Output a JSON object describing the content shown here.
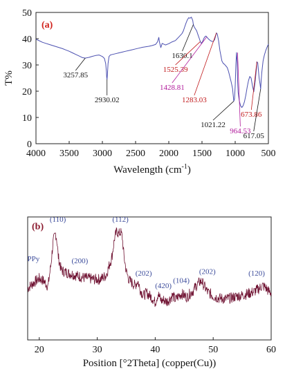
{
  "colors": {
    "ftir_line": "#4a4fb0",
    "xrd_line": "#6e1030",
    "panel_a_label": "#d0201a",
    "panel_b_label": "#8b1a2e",
    "hkl_label": "#3a4a9a",
    "ann_black": "#111111",
    "ann_red": "#c0181a",
    "ann_magenta": "#b0189a"
  },
  "chart_data": [
    {
      "type": "line",
      "panel_label": "(a)",
      "xlabel": "Wavelength (cm",
      "xlabel_sup": "-1",
      "xlabel_close": ")",
      "ylabel": "T%",
      "xlim": [
        4000,
        500
      ],
      "ylim": [
        0,
        50
      ],
      "grid": false,
      "xticks": [
        "4000",
        "3500",
        "3000",
        "2500",
        "2000",
        "1500",
        "1000",
        "500"
      ],
      "yticks": [
        "0",
        "10",
        "20",
        "30",
        "40",
        "50"
      ],
      "series": [
        {
          "x": [
            4000,
            3950,
            3900,
            3850,
            3800,
            3750,
            3700,
            3650,
            3600,
            3550,
            3500,
            3450,
            3400,
            3350,
            3300,
            3257,
            3200,
            3150,
            3100,
            3050,
            3000,
            2970,
            2950,
            2940,
            2935,
            2930,
            2925,
            2915,
            2900,
            2880,
            2850,
            2800,
            2750,
            2700,
            2650,
            2600,
            2550,
            2500,
            2450,
            2400,
            2350,
            2300,
            2250,
            2200,
            2170,
            2150,
            2140,
            2120,
            2100,
            2050,
            2000,
            1950,
            1900,
            1850,
            1800,
            1780,
            1760,
            1740,
            1720,
            1700,
            1680,
            1660,
            1640,
            1630,
            1620,
            1600,
            1580,
            1560,
            1540,
            1525,
            1510,
            1490,
            1470,
            1450,
            1440,
            1429,
            1410,
            1390,
            1370,
            1350,
            1330,
            1310,
            1290,
            1283,
            1270,
            1250,
            1230,
            1200,
            1180,
            1160,
            1140,
            1120,
            1100,
            1080,
            1060,
            1040,
            1030,
            1021,
            1010,
            1000,
            990,
            980,
            970,
            964,
            955,
            940,
            920,
            900,
            880,
            860,
            840,
            820,
            800,
            780,
            760,
            740,
            720,
            700,
            680,
            674,
            660,
            640,
            625,
            617,
            610,
            600,
            580,
            560,
            540,
            520,
            500
          ],
          "y": [
            39.8,
            39.2,
            38.6,
            38.2,
            37.8,
            37.4,
            37.0,
            36.6,
            36.2,
            35.7,
            35.2,
            34.6,
            34.0,
            33.4,
            32.8,
            32.6,
            32.9,
            33.3,
            33.6,
            33.8,
            33.2,
            32.5,
            30.5,
            27.5,
            25.5,
            24.5,
            26.0,
            30.5,
            33.2,
            33.8,
            34.0,
            34.3,
            34.6,
            34.9,
            35.2,
            35.5,
            35.8,
            36.1,
            36.4,
            36.7,
            36.9,
            37.1,
            37.4,
            37.8,
            38.8,
            40.5,
            38.6,
            36.6,
            38.2,
            37.6,
            38.1,
            38.8,
            39.3,
            40.6,
            42.0,
            43.0,
            44.5,
            46.0,
            47.2,
            48.0,
            47.8,
            48.2,
            47.0,
            45.4,
            44.6,
            43.8,
            43.0,
            41.5,
            40.0,
            38.9,
            38.2,
            39.0,
            40.2,
            40.9,
            41.0,
            40.7,
            40.1,
            39.6,
            39.2,
            39.0,
            38.9,
            39.6,
            41.5,
            42.2,
            41.8,
            39.2,
            35.5,
            31.5,
            30.6,
            30.2,
            29.6,
            29.0,
            27.5,
            25.5,
            23.5,
            21.0,
            18.5,
            16.2,
            17.0,
            22.0,
            30.0,
            34.7,
            31.0,
            24.0,
            19.5,
            16.5,
            14.5,
            13.8,
            14.5,
            16.0,
            18.5,
            21.5,
            24.0,
            25.6,
            25.0,
            22.0,
            19.8,
            23.5,
            28.5,
            31.2,
            30.8,
            25.0,
            22.6,
            20.8,
            23.5,
            27.0,
            31.5,
            33.8,
            35.5,
            36.8,
            37.9
          ]
        }
      ],
      "annotations": [
        {
          "text": "3257.85",
          "x": 3257.85,
          "y": 32.6,
          "color": "ann_black"
        },
        {
          "text": "2930.02",
          "x": 2930.02,
          "y": 24.5,
          "color": "ann_black"
        },
        {
          "text": "1630.1",
          "x": 1630.1,
          "y": 45.4,
          "color": "ann_black"
        },
        {
          "text": "1525.39",
          "x": 1525.39,
          "y": 38.9,
          "color": "ann_red"
        },
        {
          "text": "1428.81",
          "x": 1428.81,
          "y": 40.7,
          "color": "ann_magenta"
        },
        {
          "text": "1283.03",
          "x": 1283.03,
          "y": 42.2,
          "color": "ann_red"
        },
        {
          "text": "1021.22",
          "x": 1021.22,
          "y": 16.2,
          "color": "ann_black"
        },
        {
          "text": "964.53",
          "x": 964.53,
          "y": 34.7,
          "color": "ann_magenta"
        },
        {
          "text": "673.86",
          "x": 673.86,
          "y": 31.2,
          "color": "ann_red"
        },
        {
          "text": "617.05",
          "x": 617.05,
          "y": 20.8,
          "color": "ann_black"
        }
      ]
    },
    {
      "type": "line",
      "panel_label": "(b)",
      "xlabel": "Position [°2Theta] (copper(Cu))",
      "xlim": [
        18,
        60
      ],
      "grid": false,
      "yticks_shown": false,
      "xticks": [
        "20",
        "30",
        "40",
        "50",
        "60"
      ],
      "series": [
        {
          "x": [
            18.0,
            19.0,
            20.0,
            20.8,
            21.5,
            22.0,
            22.4,
            22.8,
            23.0,
            23.3,
            23.8,
            24.5,
            25.5,
            26.5,
            27.5,
            28.5,
            29.5,
            30.5,
            31.5,
            32.5,
            33.0,
            33.4,
            33.7,
            34.0,
            34.3,
            34.6,
            35.0,
            35.5,
            36.0,
            36.5,
            37.0,
            37.5,
            38.0,
            38.5,
            39.0,
            39.5,
            40.0,
            40.5,
            41.0,
            41.5,
            42.0,
            42.5,
            43.0,
            43.5,
            44.0,
            44.5,
            45.0,
            45.5,
            46.0,
            46.5,
            47.0,
            47.5,
            48.0,
            48.5,
            49.0,
            49.5,
            50.0,
            51.0,
            52.0,
            53.0,
            54.0,
            55.0,
            56.0,
            57.0,
            58.0,
            58.5,
            59.0,
            59.5,
            60.0
          ],
          "y": [
            0.36,
            0.42,
            0.47,
            0.44,
            0.38,
            0.62,
            0.88,
            0.97,
            0.92,
            0.7,
            0.56,
            0.54,
            0.52,
            0.5,
            0.48,
            0.47,
            0.46,
            0.46,
            0.5,
            0.7,
            0.92,
            1.0,
            0.96,
            0.99,
            0.94,
            0.72,
            0.55,
            0.45,
            0.42,
            0.39,
            0.44,
            0.33,
            0.28,
            0.31,
            0.28,
            0.25,
            0.2,
            0.3,
            0.22,
            0.23,
            0.21,
            0.24,
            0.28,
            0.23,
            0.27,
            0.3,
            0.28,
            0.26,
            0.3,
            0.33,
            0.38,
            0.42,
            0.44,
            0.38,
            0.32,
            0.3,
            0.27,
            0.25,
            0.24,
            0.25,
            0.27,
            0.28,
            0.3,
            0.32,
            0.36,
            0.39,
            0.37,
            0.33,
            0.31
          ]
        }
      ],
      "labels": [
        {
          "text": "PPy",
          "x": 19.0,
          "y": 0.66
        },
        {
          "text": "(110)",
          "x": 23.2,
          "y": 1.1
        },
        {
          "text": "(200)",
          "x": 27.0,
          "y": 0.64
        },
        {
          "text": "(112)",
          "x": 34.0,
          "y": 1.1
        },
        {
          "text": "(202)",
          "x": 38.0,
          "y": 0.5
        },
        {
          "text": "(420)",
          "x": 41.4,
          "y": 0.36
        },
        {
          "text": "(104)",
          "x": 44.5,
          "y": 0.42
        },
        {
          "text": "(202)",
          "x": 49.0,
          "y": 0.52
        },
        {
          "text": "(120)",
          "x": 57.5,
          "y": 0.5
        }
      ]
    }
  ]
}
